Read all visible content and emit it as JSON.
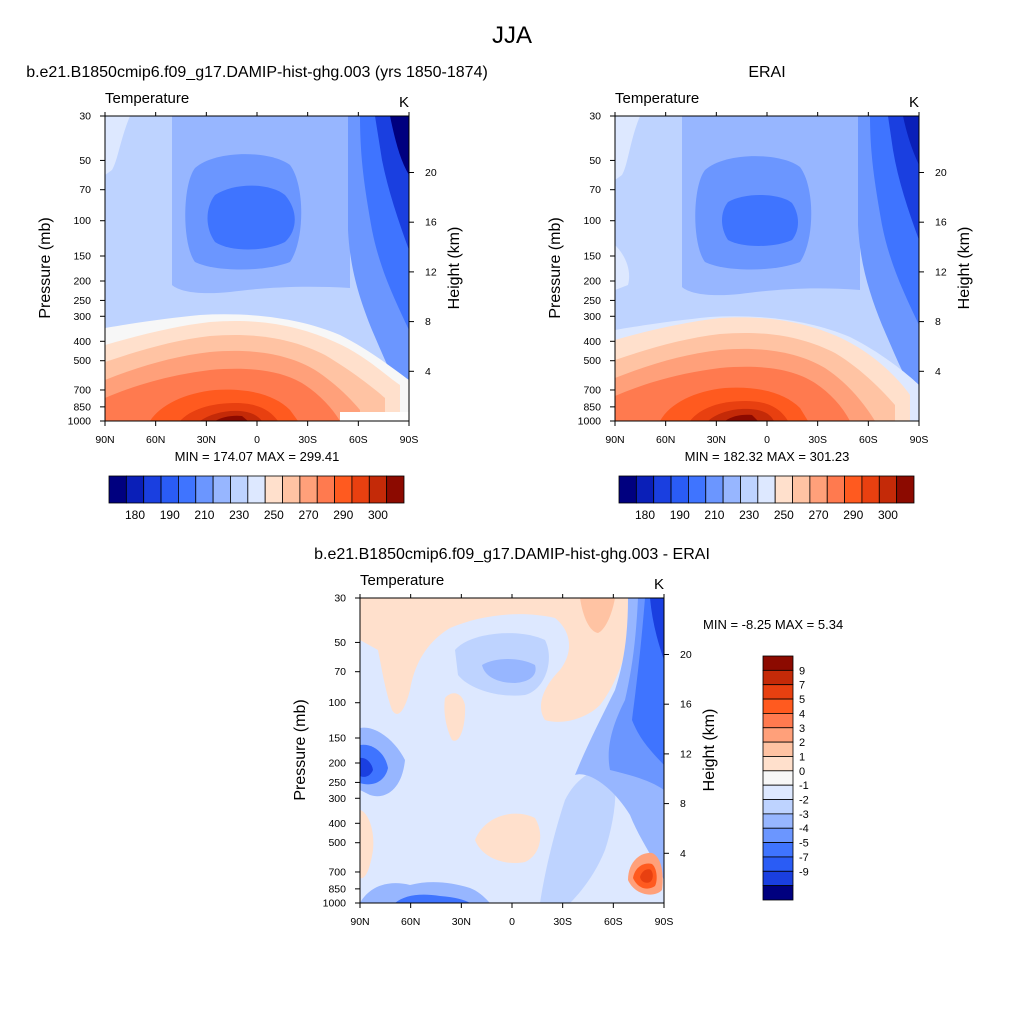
{
  "page": {
    "title": "JJA"
  },
  "colors": {
    "blue_9": "#00007f",
    "blue_8": "#0a1fb8",
    "blue_7": "#1a3fe0",
    "blue_6": "#2a5cf5",
    "blue_5": "#3f74ff",
    "blue_4": "#6b96ff",
    "blue_3": "#97b6ff",
    "blue_2": "#bed3ff",
    "blue_1": "#dde8ff",
    "neutral": "#f7f7f7",
    "red_1": "#ffe0cc",
    "red_2": "#ffc3a3",
    "red_3": "#ffa07a",
    "red_4": "#ff7a4f",
    "red_5": "#ff5a1f",
    "red_6": "#e84010",
    "red_7": "#c42a08",
    "red_8": "#8c0a00"
  },
  "chart_data": [
    {
      "type": "heatmap",
      "title": "b.e21.B1850cmip6.f09_g17.DAMIP-hist-ghg.003 (yrs 1850-1874)",
      "subtitle_left": "Temperature",
      "units": "K",
      "xlabel": "",
      "ylabel": "Pressure (mb)",
      "ylabel_right": "Height (km)",
      "x_ticks": [
        "90N",
        "60N",
        "30N",
        "0",
        "30S",
        "60S",
        "90S"
      ],
      "y_ticks": [
        "30",
        "50",
        "70",
        "100",
        "150",
        "200",
        "250",
        "300",
        "400",
        "500",
        "700",
        "850",
        "1000"
      ],
      "y_ticks_right": [
        "20",
        "16",
        "12",
        "8",
        "4"
      ],
      "y_scale": "log",
      "stats": "MIN = 174.07  MAX = 299.41",
      "colorbar": {
        "orientation": "horizontal",
        "levels": [
          175,
          180,
          185,
          190,
          200,
          210,
          220,
          230,
          240,
          250,
          260,
          270,
          280,
          290,
          295,
          300
        ],
        "labels": [
          "180",
          "190",
          "210",
          "230",
          "250",
          "270",
          "290",
          "300"
        ]
      },
      "min": 174.07,
      "max": 299.41
    },
    {
      "type": "heatmap",
      "title": "ERAI",
      "subtitle_left": "Temperature",
      "units": "K",
      "xlabel": "",
      "ylabel": "Pressure (mb)",
      "ylabel_right": "Height (km)",
      "x_ticks": [
        "90N",
        "60N",
        "30N",
        "0",
        "30S",
        "60S",
        "90S"
      ],
      "y_ticks": [
        "30",
        "50",
        "70",
        "100",
        "150",
        "200",
        "250",
        "300",
        "400",
        "500",
        "700",
        "850",
        "1000"
      ],
      "y_ticks_right": [
        "20",
        "16",
        "12",
        "8",
        "4"
      ],
      "y_scale": "log",
      "stats": "MIN = 182.32  MAX = 301.23",
      "colorbar": {
        "orientation": "horizontal",
        "levels": [
          175,
          180,
          185,
          190,
          200,
          210,
          220,
          230,
          240,
          250,
          260,
          270,
          280,
          290,
          295,
          300
        ],
        "labels": [
          "180",
          "190",
          "210",
          "230",
          "250",
          "270",
          "290",
          "300"
        ]
      },
      "min": 182.32,
      "max": 301.23
    },
    {
      "type": "heatmap",
      "title": "b.e21.B1850cmip6.f09_g17.DAMIP-hist-ghg.003 - ERAI",
      "subtitle_left": "Temperature",
      "units": "K",
      "xlabel": "",
      "ylabel": "Pressure (mb)",
      "ylabel_right": "Height (km)",
      "x_ticks": [
        "90N",
        "60N",
        "30N",
        "0",
        "30S",
        "60S",
        "90S"
      ],
      "y_ticks": [
        "30",
        "50",
        "70",
        "100",
        "150",
        "200",
        "250",
        "300",
        "400",
        "500",
        "700",
        "850",
        "1000"
      ],
      "y_ticks_right": [
        "20",
        "16",
        "12",
        "8",
        "4"
      ],
      "y_scale": "log",
      "stats": "MIN =  -8.25  MAX =   5.34",
      "colorbar": {
        "orientation": "vertical",
        "labels": [
          "9",
          "7",
          "5",
          "4",
          "3",
          "2",
          "1",
          "0",
          "-1",
          "-2",
          "-3",
          "-4",
          "-5",
          "-7",
          "-9"
        ]
      },
      "min": -8.25,
      "max": 5.34
    }
  ]
}
